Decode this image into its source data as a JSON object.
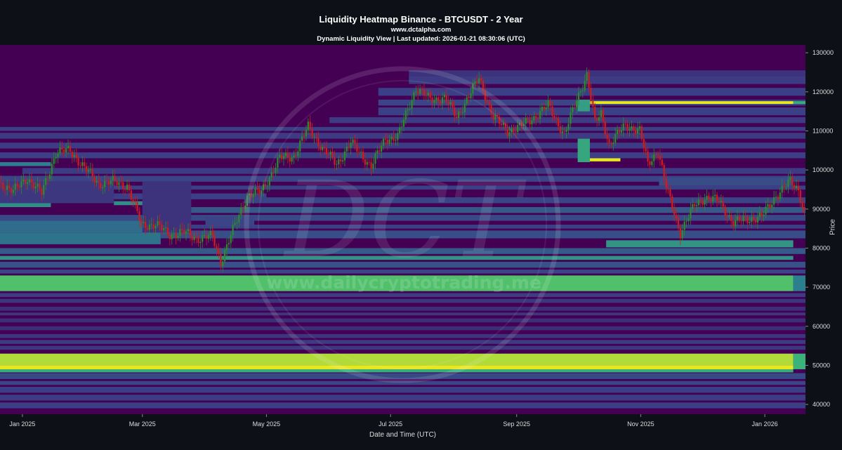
{
  "header": {
    "title": "Liquidity Heatmap Binance - BTCUSDT - 2 Year",
    "site": "www.dctalpha.com",
    "subtitle": "Dynamic Liquidity View | Last updated: 2026-01-21 08:30:06 (UTC)"
  },
  "watermark": {
    "monogram": "DCT",
    "url": "www.dailycryptotrading.me"
  },
  "colors": {
    "page_bg": "#0d1117",
    "heat_base": "#440154",
    "heat_low": "#3b3f86",
    "heat_mid": "#2c7f8e",
    "heat_high": "#3cbb75",
    "heat_max": "#e8e820",
    "candle_up": "#2e8b2e",
    "candle_down": "#d01c1c"
  },
  "chart_data": {
    "type": "heatmap",
    "title": "Liquidity Heatmap Binance - BTCUSDT - 2 Year",
    "xlabel": "Date and Time (UTC)",
    "ylabel": "Price",
    "x_range": [
      "2024-12-21",
      "2026-01-21"
    ],
    "ylim": [
      37500,
      132000
    ],
    "x_ticks": [
      {
        "date": "2025-01-01",
        "label": "Jan 2025"
      },
      {
        "date": "2025-03-01",
        "label": "Mar 2025"
      },
      {
        "date": "2025-05-01",
        "label": "May 2025"
      },
      {
        "date": "2025-07-01",
        "label": "Jul 2025"
      },
      {
        "date": "2025-09-01",
        "label": "Sep 2025"
      },
      {
        "date": "2025-11-01",
        "label": "Nov 2025"
      },
      {
        "date": "2026-01-01",
        "label": "Jan 2026"
      }
    ],
    "y_ticks": [
      {
        "value": 40000,
        "label": "40000"
      },
      {
        "value": 50000,
        "label": "50000"
      },
      {
        "value": 60000,
        "label": "60000"
      },
      {
        "value": 70000,
        "label": "70000"
      },
      {
        "value": 80000,
        "label": "80000"
      },
      {
        "value": 90000,
        "label": "90000"
      },
      {
        "value": 100000,
        "label": "100000"
      },
      {
        "value": 110000,
        "label": "110000"
      },
      {
        "value": 120000,
        "label": "120000"
      },
      {
        "value": 130000,
        "label": "130000"
      }
    ],
    "liquidity_bands": [
      {
        "from": "2024-12-21",
        "to": "2026-01-21",
        "low": 39000,
        "high": 40500,
        "level": 0.3
      },
      {
        "from": "2024-12-21",
        "to": "2026-01-21",
        "low": 41000,
        "high": 42500,
        "level": 0.28
      },
      {
        "from": "2024-12-21",
        "to": "2026-01-21",
        "low": 43000,
        "high": 44500,
        "level": 0.3
      },
      {
        "from": "2024-12-21",
        "to": "2026-01-21",
        "low": 45000,
        "high": 46000,
        "level": 0.32
      },
      {
        "from": "2024-12-21",
        "to": "2026-01-21",
        "low": 46500,
        "high": 48000,
        "level": 0.34
      },
      {
        "from": "2024-12-21",
        "to": "2026-01-15",
        "low": 48200,
        "high": 49000,
        "level": 0.7
      },
      {
        "from": "2024-12-21",
        "to": "2026-01-15",
        "low": 49000,
        "high": 50000,
        "level": 1.0
      },
      {
        "from": "2024-12-21",
        "to": "2026-01-15",
        "low": 50000,
        "high": 53000,
        "level": 0.92
      },
      {
        "from": "2026-01-15",
        "to": "2026-01-21",
        "low": 49000,
        "high": 53000,
        "level": 0.72
      },
      {
        "from": "2024-12-21",
        "to": "2026-01-21",
        "low": 54000,
        "high": 55000,
        "level": 0.26
      },
      {
        "from": "2024-12-21",
        "to": "2026-01-21",
        "low": 55500,
        "high": 56500,
        "level": 0.28
      },
      {
        "from": "2024-12-21",
        "to": "2026-01-21",
        "low": 57000,
        "high": 58000,
        "level": 0.25
      },
      {
        "from": "2024-12-21",
        "to": "2026-01-21",
        "low": 59000,
        "high": 60000,
        "level": 0.22
      },
      {
        "from": "2024-12-21",
        "to": "2026-01-21",
        "low": 61000,
        "high": 62000,
        "level": 0.22
      },
      {
        "from": "2024-12-21",
        "to": "2026-01-21",
        "low": 62800,
        "high": 63500,
        "level": 0.25
      },
      {
        "from": "2024-12-21",
        "to": "2026-01-21",
        "low": 64000,
        "high": 65000,
        "level": 0.22
      },
      {
        "from": "2024-12-21",
        "to": "2026-01-21",
        "low": 66000,
        "high": 67000,
        "level": 0.25
      },
      {
        "from": "2024-12-21",
        "to": "2026-01-21",
        "low": 67500,
        "high": 68500,
        "level": 0.28
      },
      {
        "from": "2024-12-21",
        "to": "2026-01-15",
        "low": 69000,
        "high": 73000,
        "level": 0.78
      },
      {
        "from": "2026-01-15",
        "to": "2026-01-21",
        "low": 69000,
        "high": 73000,
        "level": 0.55
      },
      {
        "from": "2024-12-21",
        "to": "2026-01-21",
        "low": 73500,
        "high": 74500,
        "level": 0.32
      },
      {
        "from": "2024-12-21",
        "to": "2026-01-21",
        "low": 75000,
        "high": 76500,
        "level": 0.38
      },
      {
        "from": "2024-12-21",
        "to": "2026-01-15",
        "low": 77000,
        "high": 78000,
        "level": 0.62
      },
      {
        "from": "2024-12-21",
        "to": "2026-01-21",
        "low": 78500,
        "high": 80000,
        "level": 0.4
      },
      {
        "from": "2025-10-15",
        "to": "2026-01-15",
        "low": 80200,
        "high": 82000,
        "level": 0.62
      },
      {
        "from": "2024-12-21",
        "to": "2025-03-10",
        "low": 81000,
        "high": 84000,
        "level": 0.5
      },
      {
        "from": "2024-12-21",
        "to": "2025-03-10",
        "low": 84000,
        "high": 87000,
        "level": 0.48
      },
      {
        "from": "2025-03-10",
        "to": "2026-01-21",
        "low": 82500,
        "high": 84500,
        "level": 0.36
      },
      {
        "from": "2025-03-10",
        "to": "2026-01-21",
        "low": 85000,
        "high": 86000,
        "level": 0.3
      },
      {
        "from": "2024-12-21",
        "to": "2026-01-21",
        "low": 87000,
        "high": 88500,
        "level": 0.34
      },
      {
        "from": "2025-03-20",
        "to": "2026-01-21",
        "low": 89000,
        "high": 90500,
        "level": 0.4
      },
      {
        "from": "2024-12-21",
        "to": "2025-01-15",
        "low": 90500,
        "high": 92000,
        "level": 0.6
      },
      {
        "from": "2025-02-15",
        "to": "2025-03-10",
        "low": 91000,
        "high": 92000,
        "level": 0.6
      },
      {
        "from": "2024-12-21",
        "to": "2025-05-01",
        "low": 92500,
        "high": 94000,
        "level": 0.3
      },
      {
        "from": "2025-04-20",
        "to": "2026-01-21",
        "low": 91500,
        "high": 93000,
        "level": 0.32
      },
      {
        "from": "2024-12-21",
        "to": "2026-01-21",
        "low": 95000,
        "high": 96000,
        "level": 0.3
      },
      {
        "from": "2024-12-21",
        "to": "2026-01-21",
        "low": 97000,
        "high": 98500,
        "level": 0.32
      },
      {
        "from": "2025-01-01",
        "to": "2026-01-21",
        "low": 99000,
        "high": 100500,
        "level": 0.28
      },
      {
        "from": "2024-12-21",
        "to": "2025-01-15",
        "low": 101000,
        "high": 102000,
        "level": 0.55
      },
      {
        "from": "2024-12-21",
        "to": "2026-01-21",
        "low": 103000,
        "high": 104500,
        "level": 0.3
      },
      {
        "from": "2024-12-21",
        "to": "2026-01-21",
        "low": 105500,
        "high": 107000,
        "level": 0.28
      },
      {
        "from": "2024-12-21",
        "to": "2026-01-21",
        "low": 108000,
        "high": 109500,
        "level": 0.28
      },
      {
        "from": "2024-12-21",
        "to": "2026-01-21",
        "low": 110000,
        "high": 111000,
        "level": 0.3
      },
      {
        "from": "2025-06-01",
        "to": "2026-01-21",
        "low": 112000,
        "high": 113500,
        "level": 0.28
      },
      {
        "from": "2025-06-25",
        "to": "2026-01-21",
        "low": 114000,
        "high": 116000,
        "level": 0.3
      },
      {
        "from": "2025-06-25",
        "to": "2026-01-21",
        "low": 116500,
        "high": 118000,
        "level": 0.32
      },
      {
        "from": "2025-10-07",
        "to": "2026-01-15",
        "low": 116900,
        "high": 117600,
        "level": 1.0
      },
      {
        "from": "2026-01-15",
        "to": "2026-01-21",
        "low": 116900,
        "high": 117600,
        "level": 0.7
      },
      {
        "from": "2025-06-25",
        "to": "2026-01-21",
        "low": 119000,
        "high": 121000,
        "level": 0.3
      },
      {
        "from": "2025-07-10",
        "to": "2026-01-21",
        "low": 122000,
        "high": 124000,
        "level": 0.28
      },
      {
        "from": "2025-07-10",
        "to": "2026-01-21",
        "low": 124000,
        "high": 125500,
        "level": 0.24
      },
      {
        "from": "2025-10-01",
        "to": "2025-10-07",
        "low": 115000,
        "high": 118000,
        "level": 0.65
      },
      {
        "from": "2025-10-01",
        "to": "2025-10-07",
        "low": 102000,
        "high": 108000,
        "level": 0.68
      },
      {
        "from": "2025-10-07",
        "to": "2025-10-22",
        "low": 102200,
        "high": 103000,
        "level": 1.0
      },
      {
        "from": "2025-11-10",
        "to": "2026-01-15",
        "low": 96000,
        "high": 98000,
        "level": 0.35
      },
      {
        "from": "2024-12-21",
        "to": "2025-02-15",
        "low": 91500,
        "high": 97000,
        "level": 0.26
      },
      {
        "from": "2025-03-01",
        "to": "2025-03-25",
        "low": 84000,
        "high": 97000,
        "level": 0.24
      },
      {
        "from": "2025-04-01",
        "to": "2025-04-25",
        "low": 85500,
        "high": 88000,
        "level": 0.32
      }
    ],
    "price_series": {
      "name": "BTCUSDT",
      "points": [
        [
          "2024-12-21",
          97000
        ],
        [
          "2024-12-28",
          94500
        ],
        [
          "2025-01-04",
          98000
        ],
        [
          "2025-01-11",
          94000
        ],
        [
          "2025-01-18",
          104500
        ],
        [
          "2025-01-25",
          105000
        ],
        [
          "2025-02-01",
          100500
        ],
        [
          "2025-02-08",
          96500
        ],
        [
          "2025-02-15",
          97000
        ],
        [
          "2025-02-22",
          96000
        ],
        [
          "2025-03-01",
          86000
        ],
        [
          "2025-03-08",
          86000
        ],
        [
          "2025-03-15",
          83500
        ],
        [
          "2025-03-22",
          84000
        ],
        [
          "2025-03-29",
          82500
        ],
        [
          "2025-04-05",
          83000
        ],
        [
          "2025-04-09",
          76500
        ],
        [
          "2025-04-15",
          84500
        ],
        [
          "2025-04-22",
          93500
        ],
        [
          "2025-04-29",
          94500
        ],
        [
          "2025-05-08",
          103000
        ],
        [
          "2025-05-15",
          103500
        ],
        [
          "2025-05-22",
          111000
        ],
        [
          "2025-05-29",
          105500
        ],
        [
          "2025-06-05",
          101500
        ],
        [
          "2025-06-12",
          107000
        ],
        [
          "2025-06-22",
          101000
        ],
        [
          "2025-06-29",
          108000
        ],
        [
          "2025-07-05",
          108500
        ],
        [
          "2025-07-14",
          121000
        ],
        [
          "2025-07-21",
          118000
        ],
        [
          "2025-07-28",
          118500
        ],
        [
          "2025-08-03",
          113500
        ],
        [
          "2025-08-14",
          123500
        ],
        [
          "2025-08-21",
          113500
        ],
        [
          "2025-08-28",
          110000
        ],
        [
          "2025-09-03",
          111000
        ],
        [
          "2025-09-10",
          113500
        ],
        [
          "2025-09-17",
          116500
        ],
        [
          "2025-09-25",
          109000
        ],
        [
          "2025-10-01",
          118000
        ],
        [
          "2025-10-06",
          124500
        ],
        [
          "2025-10-10",
          112000
        ],
        [
          "2025-10-13",
          114500
        ],
        [
          "2025-10-17",
          106500
        ],
        [
          "2025-10-25",
          111500
        ],
        [
          "2025-11-01",
          110000
        ],
        [
          "2025-11-05",
          101500
        ],
        [
          "2025-11-10",
          105000
        ],
        [
          "2025-11-14",
          95500
        ],
        [
          "2025-11-21",
          84000
        ],
        [
          "2025-11-28",
          91000
        ],
        [
          "2025-12-03",
          93000
        ],
        [
          "2025-12-10",
          92000
        ],
        [
          "2025-12-17",
          86500
        ],
        [
          "2025-12-24",
          87500
        ],
        [
          "2025-12-31",
          88000
        ],
        [
          "2026-01-07",
          93500
        ],
        [
          "2026-01-14",
          97000
        ],
        [
          "2026-01-18",
          95000
        ],
        [
          "2026-01-21",
          89000
        ]
      ]
    }
  }
}
